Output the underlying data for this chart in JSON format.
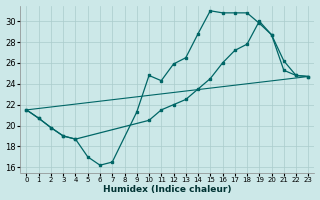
{
  "xlabel": "Humidex (Indice chaleur)",
  "background_color": "#cce8e8",
  "grid_color": "#aacccc",
  "line_color": "#006666",
  "xlim": [
    -0.5,
    23.5
  ],
  "ylim": [
    15.5,
    31.5
  ],
  "xticks": [
    0,
    1,
    2,
    3,
    4,
    5,
    6,
    7,
    8,
    9,
    10,
    11,
    12,
    13,
    14,
    15,
    16,
    17,
    18,
    19,
    20,
    21,
    22,
    23
  ],
  "yticks": [
    16,
    18,
    20,
    22,
    24,
    26,
    28,
    30
  ],
  "line1_x": [
    0,
    1,
    2,
    3,
    4,
    5,
    6,
    7,
    9,
    10,
    11,
    12,
    13,
    14,
    15,
    16,
    17,
    18,
    19,
    20,
    21,
    22,
    23
  ],
  "line1_y": [
    21.5,
    20.7,
    19.8,
    19.0,
    18.7,
    17.0,
    16.2,
    16.5,
    21.3,
    24.8,
    24.3,
    25.9,
    26.5,
    28.8,
    31.0,
    30.8,
    30.8,
    30.8,
    29.8,
    28.7,
    25.3,
    24.8,
    24.7
  ],
  "line2_x": [
    0,
    1,
    2,
    3,
    4,
    10,
    11,
    12,
    13,
    14,
    15,
    16,
    17,
    18,
    19,
    20,
    21,
    22,
    23
  ],
  "line2_y": [
    21.5,
    20.7,
    19.8,
    19.0,
    18.7,
    20.5,
    21.5,
    22.0,
    22.5,
    23.5,
    24.5,
    26.0,
    27.2,
    27.8,
    30.0,
    28.7,
    26.2,
    24.8,
    24.7
  ],
  "line3_x": [
    0,
    23
  ],
  "line3_y": [
    21.5,
    24.7
  ]
}
